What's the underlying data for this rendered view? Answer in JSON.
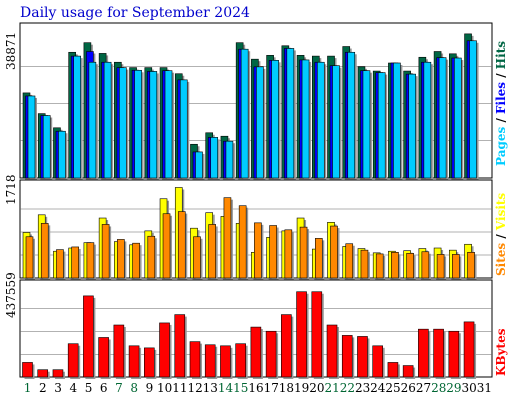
{
  "title": "Daily usage for September 2024",
  "colors": {
    "hits": "#006644",
    "files": "#0000ff",
    "pages": "#00ccff",
    "visits": "#ffff00",
    "sites": "#ff8800",
    "kbytes": "#ff0000",
    "day_normal": "#000000",
    "day_weekend": "#006633"
  },
  "legends": {
    "top": [
      {
        "text": "Hits",
        "color": "#006644"
      },
      {
        "text": " / ",
        "color": "#000000"
      },
      {
        "text": "Files",
        "color": "#0000ff"
      },
      {
        "text": " / ",
        "color": "#000000"
      },
      {
        "text": "Pages",
        "color": "#00ccff"
      }
    ],
    "middle": [
      {
        "text": "Visits",
        "color": "#ffff00"
      },
      {
        "text": " / ",
        "color": "#000000"
      },
      {
        "text": "Sites",
        "color": "#ff8800"
      }
    ],
    "bottom": [
      {
        "text": "KBytes",
        "color": "#ff0000"
      }
    ]
  },
  "chart_data": [
    {
      "type": "bar",
      "panel": "hits-files-pages",
      "ymax_label": "38871",
      "ylim": [
        0,
        38871
      ],
      "grid": true,
      "categories": [
        "1",
        "2",
        "3",
        "4",
        "5",
        "6",
        "7",
        "8",
        "9",
        "10",
        "11",
        "12",
        "13",
        "14",
        "15",
        "16",
        "17",
        "18",
        "19",
        "20",
        "21",
        "22",
        "23",
        "24",
        "25",
        "26",
        "27",
        "28",
        "29",
        "30",
        "31"
      ],
      "series": [
        {
          "name": "Hits",
          "values": [
            22200,
            16800,
            13100,
            32800,
            35300,
            32500,
            30200,
            28800,
            28800,
            28800,
            27200,
            8800,
            11800,
            10900,
            35300,
            31000,
            32000,
            34500,
            32000,
            31800,
            31800,
            34300,
            29000,
            27900,
            30000,
            27900,
            31500,
            33000,
            32400,
            37600,
            0
          ]
        },
        {
          "name": "Files",
          "values": [
            21400,
            16300,
            12200,
            31800,
            33000,
            30200,
            28800,
            28100,
            27800,
            28000,
            25600,
            6800,
            10600,
            9600,
            33600,
            29000,
            30700,
            33800,
            30800,
            30200,
            29300,
            32800,
            28000,
            27500,
            30000,
            27100,
            30200,
            31400,
            31300,
            35800,
            0
          ]
        },
        {
          "name": "Pages",
          "values": [
            21400,
            16300,
            12200,
            31800,
            30200,
            30200,
            28800,
            28100,
            27800,
            28000,
            25600,
            6800,
            10600,
            9600,
            33600,
            29000,
            30700,
            33800,
            30800,
            30200,
            29300,
            32800,
            28000,
            27500,
            30000,
            27100,
            30200,
            31400,
            31300,
            35800,
            0
          ]
        }
      ]
    },
    {
      "type": "bar",
      "panel": "visits-sites",
      "ymax_label": "1718",
      "ylim": [
        0,
        1718
      ],
      "grid": true,
      "categories": [
        "1",
        "2",
        "3",
        "4",
        "5",
        "6",
        "7",
        "8",
        "9",
        "10",
        "11",
        "12",
        "13",
        "14",
        "15",
        "16",
        "17",
        "18",
        "19",
        "20",
        "21",
        "22",
        "23",
        "24",
        "25",
        "26",
        "27",
        "28",
        "29",
        "30",
        "31"
      ],
      "series": [
        {
          "name": "Visits",
          "values": [
            850,
            1180,
            500,
            560,
            660,
            1120,
            680,
            620,
            880,
            1480,
            1690,
            930,
            1220,
            1150,
            1020,
            480,
            760,
            880,
            1120,
            540,
            1040,
            590,
            550,
            470,
            500,
            510,
            550,
            560,
            520,
            630,
            0
          ]
        },
        {
          "name": "Sites",
          "values": [
            770,
            1020,
            530,
            580,
            660,
            1000,
            720,
            650,
            780,
            1200,
            1240,
            770,
            1000,
            1500,
            1350,
            1030,
            980,
            900,
            950,
            740,
            970,
            640,
            520,
            450,
            480,
            460,
            490,
            440,
            440,
            480,
            0
          ]
        }
      ]
    },
    {
      "type": "bar",
      "panel": "kbytes",
      "ymax_label": "437559",
      "ylim": [
        0,
        437559
      ],
      "grid": true,
      "categories": [
        "1",
        "2",
        "3",
        "4",
        "5",
        "6",
        "7",
        "8",
        "9",
        "10",
        "11",
        "12",
        "13",
        "14",
        "15",
        "16",
        "17",
        "18",
        "19",
        "20",
        "21",
        "22",
        "23",
        "24",
        "25",
        "26",
        "27",
        "28",
        "29",
        "30",
        "31"
      ],
      "series": [
        {
          "name": "KBytes",
          "values": [
            70000,
            35000,
            35000,
            160000,
            390000,
            190000,
            250000,
            150000,
            140000,
            260000,
            300000,
            170000,
            155000,
            150000,
            160000,
            240000,
            220000,
            300000,
            410000,
            410000,
            250000,
            200000,
            195000,
            150000,
            70000,
            55000,
            230000,
            230000,
            220000,
            265000,
            0
          ]
        }
      ]
    }
  ],
  "weekend_days": [
    "1",
    "7",
    "8",
    "14",
    "15",
    "21",
    "22",
    "28",
    "29"
  ]
}
